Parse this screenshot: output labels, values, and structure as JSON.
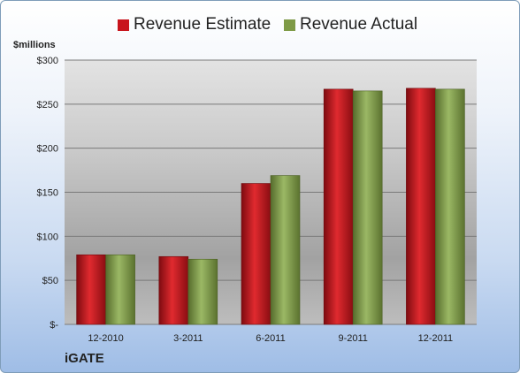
{
  "legend": {
    "estimate_label": "Revenue Estimate",
    "actual_label": "Revenue Actual"
  },
  "unit_label": "$millions",
  "company_label": "iGATE",
  "colors": {
    "estimate": "#c8141c",
    "actual": "#7e9a46"
  },
  "chart_data": {
    "type": "bar",
    "categories": [
      "12-2010",
      "3-2011",
      "6-2011",
      "9-2011",
      "12-2011"
    ],
    "series": [
      {
        "name": "Revenue Estimate",
        "values": [
          79,
          77,
          160,
          267,
          268
        ]
      },
      {
        "name": "Revenue Actual",
        "values": [
          79,
          74,
          169,
          265,
          267
        ]
      }
    ],
    "ylim": [
      0,
      300
    ],
    "yticks": [
      0,
      50,
      100,
      150,
      200,
      250,
      300
    ],
    "ytick_labels": [
      "$-",
      "$50",
      "$100",
      "$150",
      "$200",
      "$250",
      "$300"
    ],
    "grid": true,
    "legend_position": "top"
  }
}
